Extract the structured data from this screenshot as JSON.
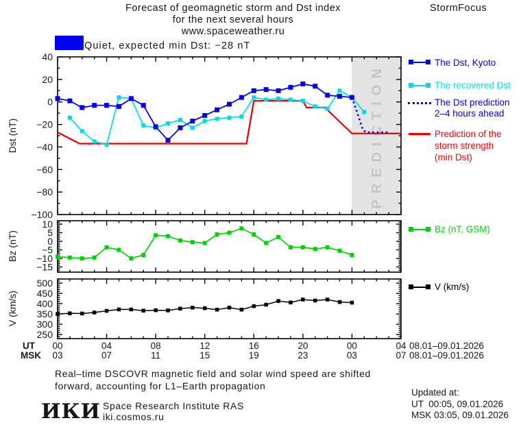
{
  "header": {
    "title_line1": "Forecast of geomagnetic storm and Dst index",
    "title_line2": "for the next several hours",
    "title_line3": "www.spaceweather.ru",
    "brand": "StormFocus",
    "status_label": "Quiet, expected min Dst: −28 nT",
    "status_box_color": "#0202f0"
  },
  "xaxis": {
    "ut_label": "UT",
    "msk_label": "MSK",
    "ut_ticks": [
      "00",
      "04",
      "08",
      "12",
      "16",
      "20",
      "00",
      "04"
    ],
    "msk_ticks": [
      "03",
      "07",
      "11",
      "15",
      "19",
      "23",
      "03",
      "07"
    ],
    "ut_date": "08.01–09.01.2026",
    "msk_date": "08.01–09.01.2026"
  },
  "footer": {
    "note_line1": "Real–time DSCOVR magnetic field and solar wind speed are shifted",
    "note_line2": "forward, accounting for L1–Earth propagation",
    "logo_text": "ИКИ",
    "institute": "Space Research Institute RAS",
    "website": "iki.cosmos.ru",
    "updated_label": "Updated at:",
    "updated_ut": "UT  00:05, 09.01.2026",
    "updated_msk": "MSK 03:05, 09.01.2026"
  },
  "chart_data": [
    {
      "type": "line",
      "ylabel": "Dst (nT)",
      "ylim": [
        -100,
        40
      ],
      "ytick_major": 20,
      "ytick_minor": 10,
      "yticks": [
        {
          "value": 40,
          "label": "40"
        },
        {
          "value": 20,
          "label": "20"
        },
        {
          "value": 0,
          "label": "0"
        },
        {
          "value": -20,
          "label": "−20"
        },
        {
          "value": -40,
          "label": "−40"
        },
        {
          "value": -60,
          "label": "−60"
        },
        {
          "value": -80,
          "label": "−80"
        },
        {
          "value": -100,
          "label": "−100"
        }
      ],
      "xlim": [
        0,
        28
      ],
      "xtick_major": 4,
      "xtick_minor": 1,
      "prediction_band": {
        "from": 24,
        "to": 28,
        "label": "PREDICTION",
        "fill": "#e3e3e3",
        "text_color": "#c5c5c5"
      },
      "draw_order": [
        3,
        1,
        0,
        2
      ],
      "series": [
        {
          "name": "The Dst, Kyoto",
          "color": "#0101ee",
          "line_width": 1.8,
          "marker": true,
          "marker_size": 7,
          "x": [
            0,
            1,
            2,
            3,
            4,
            5,
            6,
            7,
            8,
            9,
            10,
            11,
            12,
            13,
            14,
            15,
            16,
            17,
            18,
            19,
            20,
            21,
            22,
            23,
            24
          ],
          "y": [
            3,
            1,
            -5,
            -3,
            -3,
            -4,
            3,
            -3,
            -22,
            -34,
            -23,
            -17,
            -12,
            -7,
            -2,
            4,
            10,
            11,
            10,
            13,
            16,
            14,
            6,
            5,
            4
          ]
        },
        {
          "name": "The recovered Dst",
          "color": "#00dce8",
          "line_width": 1.8,
          "marker": true,
          "marker_size": 6,
          "x": [
            1,
            2,
            3,
            4,
            5,
            6,
            7,
            8,
            9,
            10,
            11,
            12,
            13,
            14,
            15,
            16,
            17,
            18,
            19,
            20,
            21,
            22,
            23,
            24,
            25
          ],
          "y": [
            -14,
            -26,
            -35,
            -38,
            4,
            3,
            -21,
            -23,
            -19,
            -16,
            -23,
            -17,
            -15,
            -14,
            -13,
            4,
            2,
            3,
            2,
            1,
            -4,
            -6,
            10,
            4,
            -9
          ]
        },
        {
          "name": "The Dst prediction 2–4 hours ahead",
          "legend_lines": [
            "The Dst prediction",
            "2–4 hours ahead"
          ],
          "color": "#0101ee",
          "style": "dotted",
          "line_width": 2.6,
          "x": [
            24,
            24.5,
            24.9,
            25.2,
            26.9
          ],
          "y": [
            4,
            -12,
            -25,
            -27,
            -27
          ]
        },
        {
          "name": "Prediction of the storm strength (min Dst)",
          "legend_lines": [
            "Prediction of the",
            "storm strength",
            "(min Dst)"
          ],
          "color": "#f40000",
          "line_width": 2.3,
          "x": [
            0,
            1.8,
            15.4,
            16,
            20,
            20.3,
            21.8,
            24,
            28
          ],
          "y": [
            -27,
            -37,
            -37,
            1,
            1,
            -5,
            -5,
            -28,
            -28
          ]
        }
      ]
    },
    {
      "type": "line",
      "ylabel": "Bz (nT)",
      "ylim": [
        -18,
        12
      ],
      "ytick_major": 5,
      "ytick_minor": 1,
      "yticks": [
        {
          "value": 10,
          "label": "10"
        },
        {
          "value": 5,
          "label": "5"
        },
        {
          "value": 0,
          "label": "0"
        },
        {
          "value": -5,
          "label": "−5"
        },
        {
          "value": -10,
          "label": "−10"
        },
        {
          "value": -15,
          "label": "−15"
        }
      ],
      "xlim": [
        0,
        28
      ],
      "xtick_major": 4,
      "xtick_minor": 1,
      "series": [
        {
          "name": "Bz (nT, GSM)",
          "color": "#00d400",
          "line_width": 1.7,
          "marker": true,
          "marker_size": 6,
          "x": [
            0,
            1,
            2,
            3,
            4,
            5,
            6,
            7,
            8,
            9,
            10,
            11,
            12,
            13,
            14,
            15,
            16,
            17,
            18,
            19,
            20,
            21,
            22,
            23,
            24
          ],
          "y": [
            -9,
            -9.5,
            -10,
            -9.5,
            -3.5,
            -5,
            -10,
            -8,
            3.5,
            3,
            0.5,
            -0.5,
            -1,
            4,
            5,
            7.5,
            4,
            -1,
            2.5,
            -3.5,
            -3.5,
            -4.5,
            -3.5,
            -5.5,
            -8
          ]
        }
      ]
    },
    {
      "type": "line",
      "ylabel": "V (km/s)",
      "ylim": [
        230,
        520
      ],
      "ytick_major": 50,
      "ytick_minor": 10,
      "yticks": [
        {
          "value": 500,
          "label": "500"
        },
        {
          "value": 450,
          "label": "450"
        },
        {
          "value": 400,
          "label": "400"
        },
        {
          "value": 350,
          "label": "350"
        },
        {
          "value": 300,
          "label": "300"
        },
        {
          "value": 250,
          "label": "250"
        }
      ],
      "xlim": [
        0,
        28
      ],
      "xtick_major": 4,
      "xtick_minor": 1,
      "series": [
        {
          "name": "V (km/s)",
          "color": "#000000",
          "line_width": 1.5,
          "marker": true,
          "marker_size": 5.5,
          "x": [
            0,
            1,
            2,
            3,
            4,
            5,
            6,
            7,
            8,
            9,
            10,
            11,
            12,
            13,
            14,
            15,
            16,
            17,
            18,
            19,
            20,
            21,
            22,
            23,
            24
          ],
          "y": [
            350,
            353,
            352,
            357,
            365,
            372,
            372,
            366,
            368,
            367,
            376,
            381,
            378,
            371,
            381,
            371,
            388,
            395,
            413,
            406,
            420,
            415,
            420,
            408,
            405
          ]
        }
      ]
    }
  ]
}
